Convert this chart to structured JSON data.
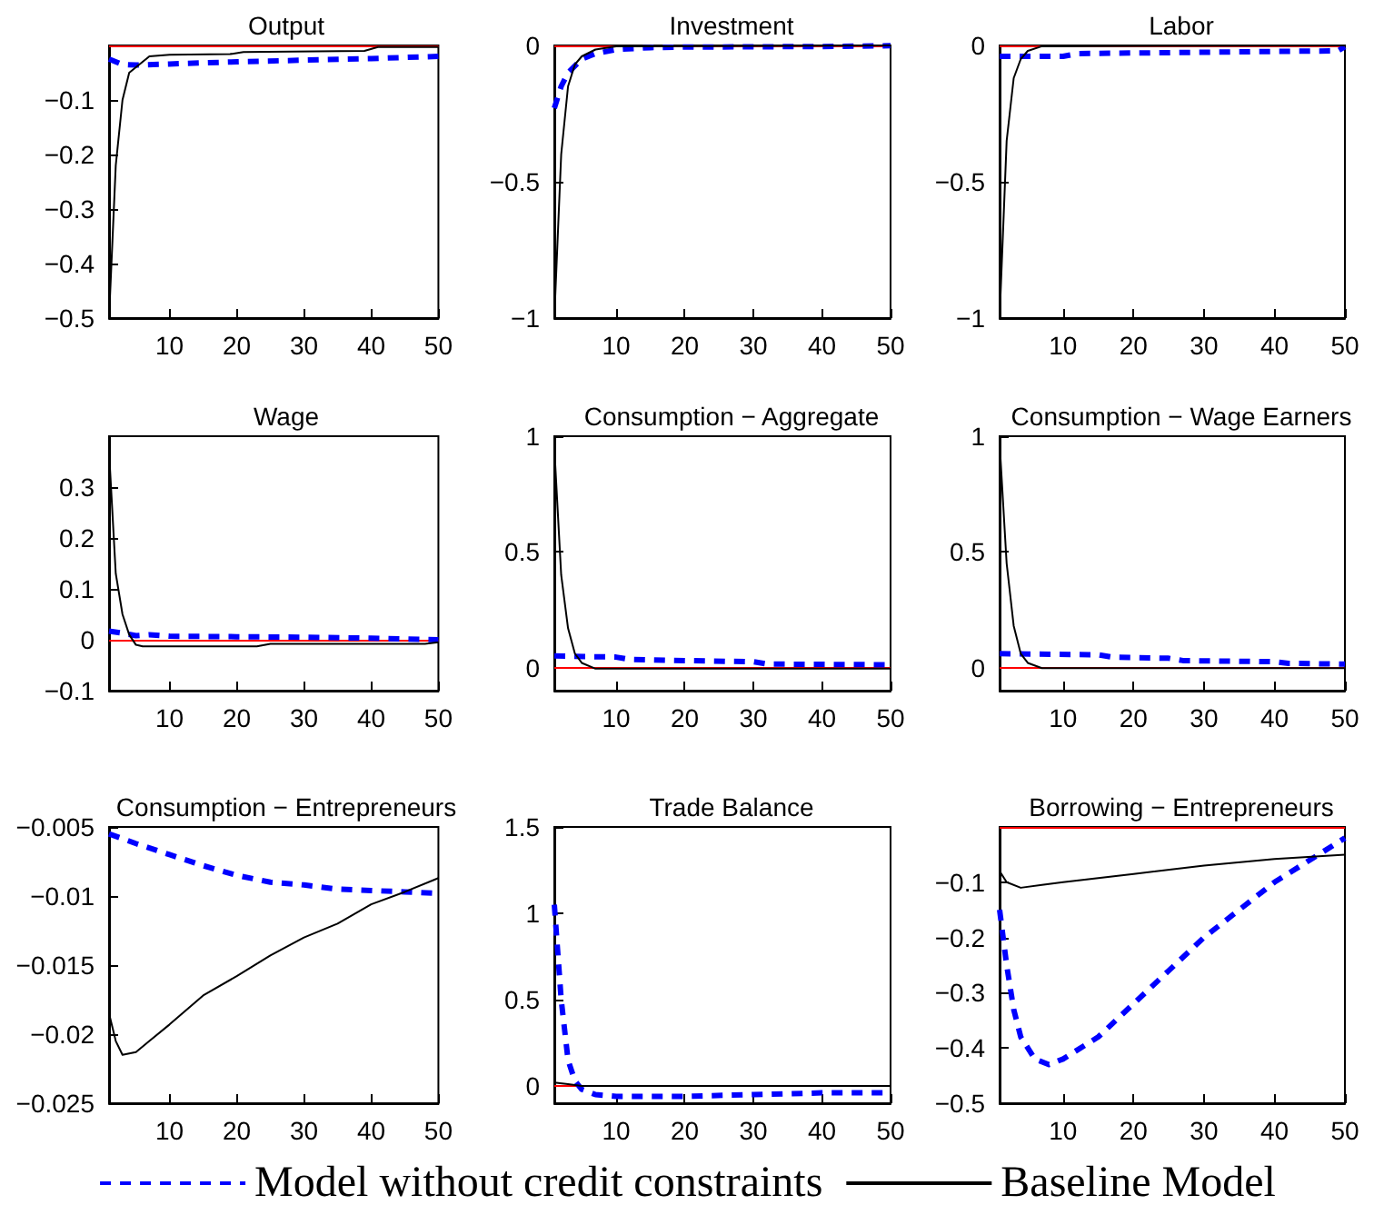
{
  "chart_data": [
    {
      "type": "line",
      "title": "Output",
      "xlim": [
        1,
        50
      ],
      "xticks": [
        10,
        20,
        30,
        40,
        50
      ],
      "ylim": [
        -0.5,
        0
      ],
      "yticks": [
        -0.5,
        -0.4,
        -0.3,
        -0.2,
        -0.1
      ],
      "marker": "none",
      "legend": false,
      "ref_lines": [
        {
          "axis": "y",
          "value": 0,
          "color": "#ff0000"
        }
      ],
      "series": [
        {
          "color": "#0000ff",
          "line_style": "dashed",
          "x": [
            1,
            3,
            5,
            10,
            15,
            20,
            30,
            40,
            50
          ],
          "values": [
            -0.025,
            -0.035,
            -0.036,
            -0.034,
            -0.032,
            -0.03,
            -0.027,
            -0.024,
            -0.02
          ]
        },
        {
          "color": "#000000",
          "line_style": "solid",
          "x": [
            1,
            2,
            3,
            4,
            5,
            7,
            10,
            19,
            21,
            39,
            41,
            50
          ],
          "values": [
            -0.5,
            -0.22,
            -0.1,
            -0.05,
            -0.04,
            -0.02,
            -0.017,
            -0.016,
            -0.012,
            -0.01,
            -0.003,
            -0.003
          ]
        }
      ]
    },
    {
      "type": "line",
      "title": "Investment",
      "xlim": [
        1,
        50
      ],
      "xticks": [
        10,
        20,
        30,
        40,
        50
      ],
      "ylim": [
        -1,
        0
      ],
      "yticks": [
        -1,
        -0.5,
        0
      ],
      "marker": "none",
      "legend": false,
      "ref_lines": [
        {
          "axis": "y",
          "value": 0,
          "color": "#ff0000"
        }
      ],
      "series": [
        {
          "color": "#0000ff",
          "line_style": "dashed",
          "x": [
            1,
            2,
            3,
            5,
            7,
            10,
            15,
            20,
            30,
            40,
            50
          ],
          "values": [
            -0.23,
            -0.15,
            -0.1,
            -0.05,
            -0.03,
            -0.015,
            -0.008,
            -0.006,
            -0.005,
            -0.004,
            -0.001
          ]
        },
        {
          "color": "#000000",
          "line_style": "solid",
          "x": [
            1,
            2,
            3,
            4,
            5,
            7,
            10,
            50
          ],
          "values": [
            -1,
            -0.4,
            -0.15,
            -0.07,
            -0.04,
            -0.015,
            -0.003,
            0
          ]
        }
      ]
    },
    {
      "type": "line",
      "title": "Labor",
      "xlim": [
        1,
        50
      ],
      "xticks": [
        10,
        20,
        30,
        40,
        50
      ],
      "ylim": [
        -1,
        0
      ],
      "yticks": [
        -1,
        -0.5,
        0
      ],
      "marker": "none",
      "legend": false,
      "ref_lines": [
        {
          "axis": "y",
          "value": 0,
          "color": "#ff0000"
        }
      ],
      "series": [
        {
          "color": "#0000ff",
          "line_style": "dashed",
          "x": [
            1,
            10,
            12,
            30,
            40,
            49,
            50
          ],
          "values": [
            -0.04,
            -0.04,
            -0.03,
            -0.025,
            -0.022,
            -0.02,
            -0.005
          ]
        },
        {
          "color": "#000000",
          "line_style": "solid",
          "x": [
            1,
            2,
            3,
            4,
            5,
            7,
            50
          ],
          "values": [
            -1,
            -0.35,
            -0.12,
            -0.05,
            -0.02,
            -0.003,
            0
          ]
        }
      ]
    },
    {
      "type": "line",
      "title": "Wage",
      "xlim": [
        1,
        50
      ],
      "xticks": [
        10,
        20,
        30,
        40,
        50
      ],
      "ylim": [
        -0.1,
        0.4
      ],
      "yticks": [
        -0.1,
        0,
        0.1,
        0.2,
        0.3
      ],
      "marker": "none",
      "legend": false,
      "ref_lines": [
        {
          "axis": "y",
          "value": 0,
          "color": "#ff0000"
        }
      ],
      "series": [
        {
          "color": "#0000ff",
          "line_style": "dashed",
          "x": [
            1,
            3,
            5,
            7,
            10,
            20,
            30,
            40,
            50
          ],
          "values": [
            0.017,
            0.013,
            0.008,
            0.01,
            0.007,
            0.006,
            0.005,
            0.003,
            0
          ]
        },
        {
          "color": "#000000",
          "line_style": "solid",
          "x": [
            1,
            2,
            3,
            4,
            5,
            6,
            23,
            25,
            48,
            50
          ],
          "values": [
            0.37,
            0.13,
            0.05,
            0.01,
            -0.01,
            -0.013,
            -0.013,
            -0.008,
            -0.008,
            -0.005
          ]
        }
      ]
    },
    {
      "type": "line",
      "title": "Consumption − Aggregate",
      "xlim": [
        1,
        50
      ],
      "xticks": [
        10,
        20,
        30,
        40,
        50
      ],
      "ylim": [
        -0.1,
        1
      ],
      "yticks": [
        0,
        0.5,
        1
      ],
      "marker": "none",
      "legend": false,
      "ref_lines": [
        {
          "axis": "y",
          "value": 0,
          "color": "#ff0000"
        }
      ],
      "series": [
        {
          "color": "#0000ff",
          "line_style": "dashed",
          "x": [
            1,
            10,
            12,
            20,
            30,
            32,
            50
          ],
          "values": [
            0.05,
            0.045,
            0.035,
            0.03,
            0.025,
            0.015,
            0.012
          ]
        },
        {
          "color": "#000000",
          "line_style": "solid",
          "x": [
            1,
            2,
            3,
            4,
            5,
            7,
            50
          ],
          "values": [
            0.95,
            0.4,
            0.17,
            0.06,
            0.02,
            -0.005,
            -0.005
          ]
        }
      ]
    },
    {
      "type": "line",
      "title": "Consumption − Wage Earners",
      "xlim": [
        1,
        50
      ],
      "xticks": [
        10,
        20,
        30,
        40,
        50
      ],
      "ylim": [
        -0.1,
        1
      ],
      "yticks": [
        0,
        0.5,
        1
      ],
      "marker": "none",
      "legend": false,
      "ref_lines": [
        {
          "axis": "y",
          "value": 0,
          "color": "#ff0000"
        }
      ],
      "series": [
        {
          "color": "#0000ff",
          "line_style": "dashed",
          "x": [
            1,
            15,
            17,
            25,
            27,
            40,
            42,
            50
          ],
          "values": [
            0.06,
            0.055,
            0.045,
            0.04,
            0.03,
            0.025,
            0.018,
            0.015
          ]
        },
        {
          "color": "#000000",
          "line_style": "solid",
          "x": [
            1,
            2,
            3,
            4,
            5,
            7,
            50
          ],
          "values": [
            0.97,
            0.45,
            0.18,
            0.06,
            0.02,
            -0.003,
            -0.003
          ]
        }
      ]
    },
    {
      "type": "line",
      "title": "Consumption − Entrepreneurs",
      "xlim": [
        1,
        50
      ],
      "xticks": [
        10,
        20,
        30,
        40,
        50
      ],
      "ylim": [
        -0.025,
        -0.005
      ],
      "yticks": [
        -0.025,
        -0.02,
        -0.015,
        -0.01,
        -0.005
      ],
      "marker": "none",
      "legend": false,
      "series": [
        {
          "color": "#0000ff",
          "line_style": "dashed",
          "x": [
            1,
            5,
            10,
            15,
            20,
            25,
            30,
            35,
            40,
            45,
            50
          ],
          "values": [
            -0.0055,
            -0.0062,
            -0.007,
            -0.0078,
            -0.0085,
            -0.009,
            -0.0092,
            -0.0095,
            -0.0096,
            -0.0097,
            -0.0098
          ]
        },
        {
          "color": "#000000",
          "line_style": "solid",
          "x": [
            1,
            2,
            3,
            5,
            7,
            10,
            15,
            20,
            25,
            30,
            35,
            40,
            45,
            50
          ],
          "values": [
            -0.0185,
            -0.0205,
            -0.0215,
            -0.0213,
            -0.0205,
            -0.0193,
            -0.0172,
            -0.0158,
            -0.0143,
            -0.013,
            -0.012,
            -0.0106,
            -0.0097,
            -0.0087
          ]
        }
      ]
    },
    {
      "type": "line",
      "title": "Trade Balance",
      "xlim": [
        1,
        50
      ],
      "xticks": [
        10,
        20,
        30,
        40,
        50
      ],
      "ylim": [
        -0.1,
        1.5
      ],
      "yticks": [
        0,
        0.5,
        1,
        1.5
      ],
      "marker": "none",
      "legend": "bottom",
      "ref_lines": [
        {
          "axis": "y",
          "value": 0,
          "color": "#ff0000"
        }
      ],
      "series": [
        {
          "name": "Model without credit constraints",
          "color": "#0000ff",
          "line_style": "dashed",
          "x": [
            1,
            2,
            3,
            4,
            5,
            7,
            10,
            20,
            30,
            40,
            50
          ],
          "values": [
            1.05,
            0.5,
            0.15,
            0.03,
            -0.02,
            -0.05,
            -0.06,
            -0.06,
            -0.05,
            -0.04,
            -0.04
          ]
        },
        {
          "name": "Baseline Model",
          "color": "#000000",
          "line_style": "solid",
          "x": [
            1,
            3,
            5,
            50
          ],
          "values": [
            0.02,
            0.01,
            0,
            0
          ]
        }
      ]
    },
    {
      "type": "line",
      "title": "Borrowing − Entrepreneurs",
      "xlim": [
        1,
        50
      ],
      "xticks": [
        10,
        20,
        30,
        40,
        50
      ],
      "ylim": [
        -0.5,
        0
      ],
      "yticks": [
        -0.5,
        -0.4,
        -0.3,
        -0.2,
        -0.1
      ],
      "marker": "none",
      "legend": false,
      "ref_lines": [
        {
          "axis": "y",
          "value": 0,
          "color": "#ff0000"
        }
      ],
      "series": [
        {
          "color": "#0000ff",
          "line_style": "dashed",
          "x": [
            1,
            2,
            3,
            4,
            6,
            8,
            10,
            15,
            20,
            25,
            30,
            35,
            40,
            45,
            50
          ],
          "values": [
            -0.15,
            -0.25,
            -0.33,
            -0.38,
            -0.42,
            -0.43,
            -0.42,
            -0.38,
            -0.32,
            -0.26,
            -0.2,
            -0.15,
            -0.1,
            -0.06,
            -0.02
          ]
        },
        {
          "color": "#000000",
          "line_style": "solid",
          "x": [
            1,
            2,
            4,
            7,
            10,
            20,
            30,
            40,
            50
          ],
          "values": [
            -0.08,
            -0.1,
            -0.11,
            -0.105,
            -0.1,
            -0.085,
            -0.07,
            -0.058,
            -0.05
          ]
        }
      ]
    }
  ]
}
